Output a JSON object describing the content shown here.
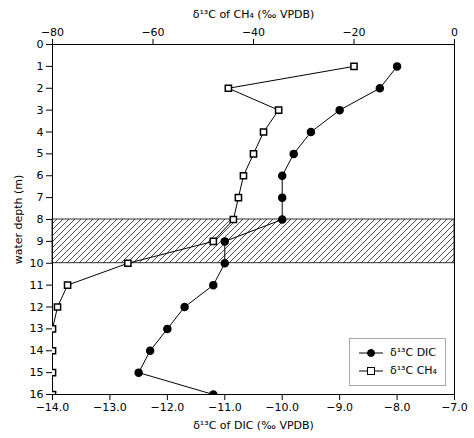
{
  "chart_data": {
    "type": "line",
    "xlabel": "δ¹³C of DIC (‰ VPDB)",
    "x2label": "δ¹³C of CH₄ (‰ VPDB)",
    "ylabel": "water depth (m)",
    "xlim": [
      -14,
      -7
    ],
    "xticks": [
      -14,
      -13,
      -12,
      -11,
      -10,
      -9,
      -8,
      -7
    ],
    "x2lim": [
      -80,
      0
    ],
    "x2ticks": [
      -80,
      -60,
      -40,
      -20,
      0
    ],
    "ylim": [
      16,
      0
    ],
    "yticks": [
      0,
      1,
      2,
      3,
      4,
      5,
      6,
      7,
      8,
      9,
      10,
      11,
      12,
      13,
      14,
      15,
      16
    ],
    "band": [
      8,
      10
    ],
    "grid": false,
    "legend": "lower right",
    "series": [
      {
        "name": "δ¹³C DIC",
        "axis": "x",
        "color": "black",
        "marker": "circle",
        "x": [
          -8.0,
          -8.3,
          -9.0,
          -9.5,
          -9.8,
          -10.0,
          -10.0,
          -10.0,
          -11.0,
          -11.0,
          -11.2,
          -11.7,
          -12.0,
          -12.3,
          -12.5,
          -11.2
        ],
        "y": [
          1,
          2,
          3,
          4,
          5,
          6,
          7,
          8,
          9,
          10,
          11,
          12,
          13,
          14,
          15,
          16
        ]
      },
      {
        "name": "δ¹³C CH₄",
        "axis": "x2",
        "color": "black",
        "marker": "square",
        "x": [
          -20,
          -45,
          -35,
          -38,
          -40,
          -42,
          -43,
          -44,
          -48,
          -65,
          -77,
          -79,
          -80,
          -80,
          -80,
          -80
        ],
        "y": [
          1,
          2,
          3,
          4,
          5,
          6,
          7,
          8,
          9,
          10,
          11,
          12,
          13,
          14,
          15,
          16
        ]
      }
    ]
  }
}
